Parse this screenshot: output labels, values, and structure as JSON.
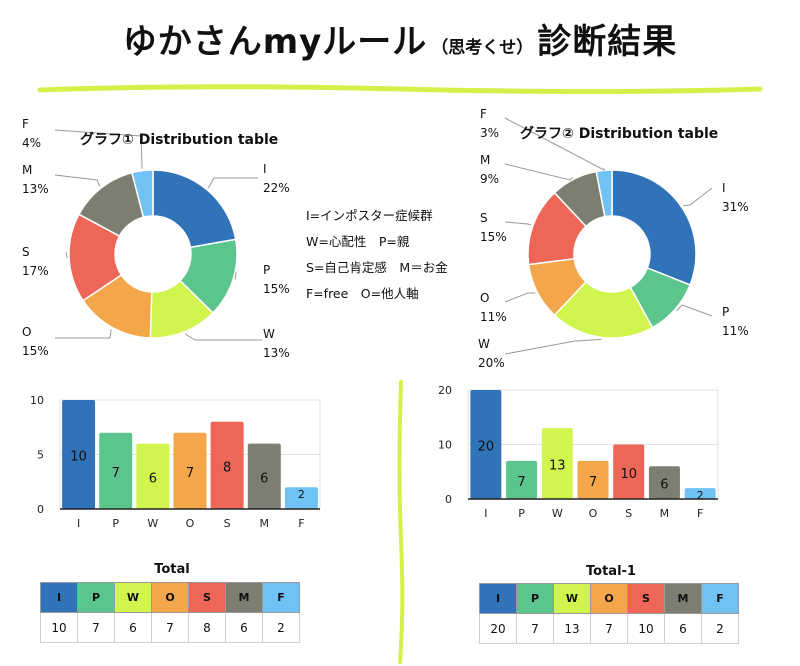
{
  "title": {
    "main": "ゆかさんmyルール",
    "sub": "（思考くせ）",
    "suffix": "診断結果"
  },
  "colors": {
    "I": "#3173b8",
    "P": "#5cc58d",
    "W": "#cff54e",
    "O": "#f3a64a",
    "S": "#ed6658",
    "M": "#7d7e72",
    "F": "#71c2f4",
    "green_rule": "#d4f14a"
  },
  "legend": {
    "line1": "I=インポスター症候群",
    "line2": "W=心配性　P=親",
    "line3": "S=自己肯定感　M＝お金",
    "line4": "F=free　O=他人軸"
  },
  "chart_data": [
    {
      "type": "pie",
      "title": "グラフ① Distribution table",
      "categories": [
        "I",
        "P",
        "W",
        "O",
        "S",
        "M",
        "F"
      ],
      "values": [
        22,
        15,
        13,
        15,
        17,
        13,
        4
      ],
      "labels": [
        "I\n22%",
        "P\n15%",
        "W\n13%",
        "O\n15%",
        "S\n17%",
        "M\n13%",
        "F\n4%"
      ]
    },
    {
      "type": "pie",
      "title": "グラフ② Distribution table",
      "categories": [
        "I",
        "P",
        "W",
        "O",
        "S",
        "M",
        "F"
      ],
      "values": [
        31,
        11,
        20,
        11,
        15,
        9,
        3
      ],
      "labels": [
        "I\n31%",
        "P\n11%",
        "W\n20%",
        "O\n11%",
        "S\n15%",
        "M\n9%",
        "F\n3%"
      ]
    },
    {
      "type": "bar",
      "categories": [
        "I",
        "P",
        "W",
        "O",
        "S",
        "M",
        "F"
      ],
      "values": [
        10,
        7,
        6,
        7,
        8,
        6,
        2
      ],
      "ylim": [
        0,
        10
      ],
      "yticks": [
        0,
        5,
        10
      ]
    },
    {
      "type": "bar",
      "categories": [
        "I",
        "P",
        "W",
        "O",
        "S",
        "M",
        "F"
      ],
      "values": [
        20,
        7,
        13,
        7,
        10,
        6,
        2
      ],
      "ylim": [
        0,
        20
      ],
      "yticks": [
        0,
        10,
        20
      ]
    }
  ],
  "tables": [
    {
      "title": "Total",
      "headers": [
        "I",
        "P",
        "W",
        "O",
        "S",
        "M",
        "F"
      ],
      "values": [
        "10",
        "7",
        "6",
        "7",
        "8",
        "6",
        "2"
      ]
    },
    {
      "title": "Total-1",
      "headers": [
        "I",
        "P",
        "W",
        "O",
        "S",
        "M",
        "F"
      ],
      "values": [
        "20",
        "7",
        "13",
        "7",
        "10",
        "6",
        "2"
      ]
    }
  ]
}
